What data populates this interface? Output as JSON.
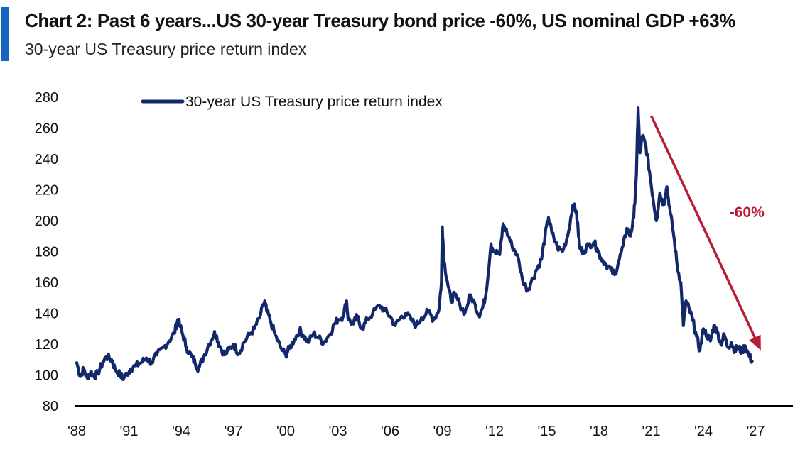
{
  "colors": {
    "accent": "#1565c0",
    "series": "#13286b",
    "arrow": "#b81c36",
    "axis": "#000000"
  },
  "title": "Chart 2: Past 6 years...US 30-year Treasury bond price -60%, US nominal GDP +63%",
  "subtitle": "30-year US Treasury price return index",
  "chart_data": {
    "type": "line",
    "ylim": [
      80,
      280
    ],
    "yticks": [
      80,
      100,
      120,
      140,
      160,
      180,
      200,
      220,
      240,
      260,
      280
    ],
    "xlim": [
      1988,
      2028
    ],
    "xticks": [
      {
        "value": 1988,
        "label": "'88"
      },
      {
        "value": 1991,
        "label": "'91"
      },
      {
        "value": 1994,
        "label": "'94"
      },
      {
        "value": 1997,
        "label": "'97"
      },
      {
        "value": 2000,
        "label": "'00"
      },
      {
        "value": 2003,
        "label": "'03"
      },
      {
        "value": 2006,
        "label": "'06"
      },
      {
        "value": 2009,
        "label": "'09"
      },
      {
        "value": 2012,
        "label": "'12"
      },
      {
        "value": 2015,
        "label": "'15"
      },
      {
        "value": 2018,
        "label": "'18"
      },
      {
        "value": 2021,
        "label": "'21"
      },
      {
        "value": 2024,
        "label": "'24"
      },
      {
        "value": 2027,
        "label": "'27"
      }
    ],
    "legend": {
      "placement": "top-left",
      "entries": [
        "30-year US Treasury price return index"
      ]
    },
    "series": [
      {
        "name": "30-year US Treasury price return index",
        "points": [
          [
            1988.0,
            108
          ],
          [
            1988.2,
            99
          ],
          [
            1988.4,
            104
          ],
          [
            1988.6,
            98
          ],
          [
            1988.8,
            102
          ],
          [
            1989.0,
            99
          ],
          [
            1989.2,
            101
          ],
          [
            1989.5,
            108
          ],
          [
            1989.7,
            112
          ],
          [
            1990.0,
            110
          ],
          [
            1990.2,
            104
          ],
          [
            1990.5,
            100
          ],
          [
            1990.7,
            98
          ],
          [
            1990.9,
            101
          ],
          [
            1991.1,
            104
          ],
          [
            1991.4,
            106
          ],
          [
            1991.7,
            108
          ],
          [
            1992.0,
            111
          ],
          [
            1992.3,
            108
          ],
          [
            1992.6,
            113
          ],
          [
            1993.0,
            118
          ],
          [
            1993.3,
            122
          ],
          [
            1993.6,
            127
          ],
          [
            1993.8,
            136
          ],
          [
            1993.9,
            133
          ],
          [
            1994.1,
            126
          ],
          [
            1994.3,
            118
          ],
          [
            1994.6,
            112
          ],
          [
            1994.8,
            108
          ],
          [
            1995.0,
            104
          ],
          [
            1995.3,
            112
          ],
          [
            1995.6,
            120
          ],
          [
            1995.9,
            127
          ],
          [
            1996.0,
            126
          ],
          [
            1996.2,
            119
          ],
          [
            1996.5,
            113
          ],
          [
            1996.7,
            116
          ],
          [
            1997.0,
            120
          ],
          [
            1997.3,
            114
          ],
          [
            1997.6,
            121
          ],
          [
            1997.9,
            126
          ],
          [
            1998.2,
            130
          ],
          [
            1998.5,
            137
          ],
          [
            1998.8,
            148
          ],
          [
            1998.9,
            142
          ],
          [
            1999.1,
            136
          ],
          [
            1999.4,
            126
          ],
          [
            1999.7,
            118
          ],
          [
            2000.0,
            113
          ],
          [
            2000.2,
            117
          ],
          [
            2000.5,
            123
          ],
          [
            2000.8,
            129
          ],
          [
            2001.0,
            126
          ],
          [
            2001.3,
            121
          ],
          [
            2001.6,
            127
          ],
          [
            2001.9,
            124
          ],
          [
            2002.2,
            121
          ],
          [
            2002.5,
            126
          ],
          [
            2002.8,
            133
          ],
          [
            2003.0,
            136
          ],
          [
            2003.3,
            138
          ],
          [
            2003.5,
            148
          ],
          [
            2003.6,
            136
          ],
          [
            2003.9,
            133
          ],
          [
            2004.1,
            138
          ],
          [
            2004.4,
            130
          ],
          [
            2004.7,
            136
          ],
          [
            2005.0,
            140
          ],
          [
            2005.4,
            145
          ],
          [
            2005.7,
            142
          ],
          [
            2006.0,
            138
          ],
          [
            2006.3,
            132
          ],
          [
            2006.6,
            137
          ],
          [
            2006.9,
            140
          ],
          [
            2007.2,
            136
          ],
          [
            2007.5,
            132
          ],
          [
            2007.8,
            137
          ],
          [
            2008.2,
            141
          ],
          [
            2008.5,
            136
          ],
          [
            2008.8,
            142
          ],
          [
            2008.95,
            160
          ],
          [
            2009.0,
            196
          ],
          [
            2009.1,
            174
          ],
          [
            2009.3,
            160
          ],
          [
            2009.5,
            148
          ],
          [
            2009.7,
            152
          ],
          [
            2010.0,
            146
          ],
          [
            2010.3,
            140
          ],
          [
            2010.6,
            152
          ],
          [
            2010.9,
            145
          ],
          [
            2011.1,
            139
          ],
          [
            2011.3,
            143
          ],
          [
            2011.5,
            152
          ],
          [
            2011.8,
            185
          ],
          [
            2012.0,
            180
          ],
          [
            2012.3,
            178
          ],
          [
            2012.5,
            198
          ],
          [
            2012.8,
            190
          ],
          [
            2013.0,
            184
          ],
          [
            2013.3,
            178
          ],
          [
            2013.6,
            162
          ],
          [
            2013.9,
            155
          ],
          [
            2014.1,
            160
          ],
          [
            2014.4,
            168
          ],
          [
            2014.7,
            175
          ],
          [
            2014.9,
            190
          ],
          [
            2015.1,
            202
          ],
          [
            2015.3,
            192
          ],
          [
            2015.6,
            183
          ],
          [
            2015.9,
            180
          ],
          [
            2016.2,
            190
          ],
          [
            2016.5,
            210
          ],
          [
            2016.7,
            206
          ],
          [
            2016.9,
            182
          ],
          [
            2017.1,
            180
          ],
          [
            2017.4,
            184
          ],
          [
            2017.7,
            186
          ],
          [
            2017.9,
            182
          ],
          [
            2018.1,
            176
          ],
          [
            2018.4,
            172
          ],
          [
            2018.7,
            168
          ],
          [
            2018.9,
            165
          ],
          [
            2019.1,
            172
          ],
          [
            2019.4,
            184
          ],
          [
            2019.6,
            195
          ],
          [
            2019.8,
            190
          ],
          [
            2020.0,
            202
          ],
          [
            2020.15,
            230
          ],
          [
            2020.25,
            273
          ],
          [
            2020.35,
            244
          ],
          [
            2020.5,
            255
          ],
          [
            2020.7,
            248
          ],
          [
            2020.9,
            232
          ],
          [
            2021.1,
            215
          ],
          [
            2021.3,
            200
          ],
          [
            2021.5,
            218
          ],
          [
            2021.7,
            210
          ],
          [
            2021.9,
            222
          ],
          [
            2022.1,
            205
          ],
          [
            2022.3,
            190
          ],
          [
            2022.5,
            170
          ],
          [
            2022.7,
            160
          ],
          [
            2022.85,
            132
          ],
          [
            2023.0,
            148
          ],
          [
            2023.2,
            142
          ],
          [
            2023.4,
            135
          ],
          [
            2023.6,
            125
          ],
          [
            2023.8,
            116
          ],
          [
            2024.0,
            130
          ],
          [
            2024.2,
            126
          ],
          [
            2024.4,
            122
          ],
          [
            2024.6,
            132
          ],
          [
            2024.8,
            128
          ],
          [
            2025.0,
            120
          ],
          [
            2025.2,
            126
          ],
          [
            2025.4,
            118
          ],
          [
            2025.6,
            121
          ],
          [
            2025.8,
            116
          ],
          [
            2026.0,
            118
          ],
          [
            2026.2,
            115
          ],
          [
            2026.4,
            119
          ],
          [
            2026.6,
            113
          ],
          [
            2026.8,
            109
          ]
        ]
      }
    ],
    "annotations": [
      {
        "text": "-60%",
        "type": "arrow",
        "from": [
          2021.0,
          268
        ],
        "to": [
          2027.3,
          116
        ],
        "label_at": [
          2025.5,
          200
        ]
      }
    ]
  }
}
